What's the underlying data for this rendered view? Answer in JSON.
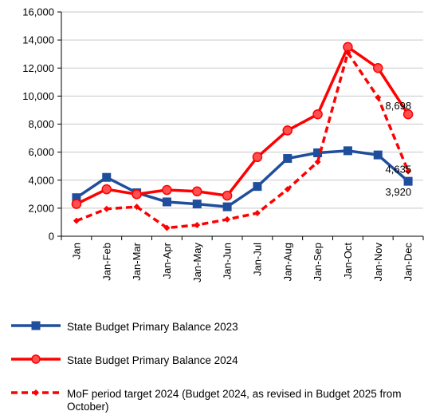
{
  "chart_data": {
    "type": "line",
    "categories": [
      "Jan",
      "Jan-Feb",
      "Jan-Mar",
      "Jan-Apr",
      "Jan-May",
      "Jan-Jun",
      "Jan-Jul",
      "Jan-Aug",
      "Jan-Sep",
      "Jan-Oct",
      "Jan-Nov",
      "Jan-Dec"
    ],
    "series": [
      {
        "name": "State Budget Primary Balance 2023",
        "color": "#1f4e9c",
        "marker": "square",
        "dashed": false,
        "values": [
          2750,
          4200,
          3100,
          2450,
          2300,
          2100,
          3550,
          5550,
          5950,
          6100,
          5800,
          3920
        ],
        "value_labels": [
          null,
          null,
          null,
          null,
          null,
          null,
          null,
          null,
          null,
          null,
          null,
          "3,920"
        ]
      },
      {
        "name": "State Budget Primary Balance 2024",
        "color": "#ff0000",
        "marker": "circle",
        "dashed": false,
        "values": [
          2300,
          3350,
          3000,
          3300,
          3200,
          2900,
          5650,
          7550,
          8700,
          13500,
          12000,
          8698
        ],
        "value_labels": [
          null,
          null,
          null,
          null,
          null,
          null,
          null,
          null,
          null,
          null,
          null,
          "8,698"
        ]
      },
      {
        "name": "MoF period target 2024 (Budget 2024, as revised in Budget 2025 from October)",
        "color": "#ff0000",
        "marker": "diamond",
        "dashed": true,
        "values": [
          1100,
          1950,
          2100,
          600,
          800,
          1200,
          1650,
          3350,
          5300,
          13100,
          9900,
          4635
        ],
        "value_labels": [
          null,
          null,
          null,
          null,
          null,
          null,
          null,
          null,
          null,
          null,
          null,
          "4,635"
        ]
      }
    ],
    "ylim": [
      0,
      16000
    ],
    "yticks": [
      0,
      {
        "value": 2000,
        "label": "2,000"
      },
      {
        "value": 4000,
        "label": "4,000"
      },
      {
        "value": 6000,
        "label": "6,000"
      },
      {
        "value": 8000,
        "label": "8,000"
      },
      {
        "value": 10000,
        "label": "10,000"
      },
      {
        "value": 12000,
        "label": "12,000"
      },
      {
        "value": 14000,
        "label": "14,000"
      },
      {
        "value": 16000,
        "label": "16,000"
      }
    ],
    "grid": true
  }
}
